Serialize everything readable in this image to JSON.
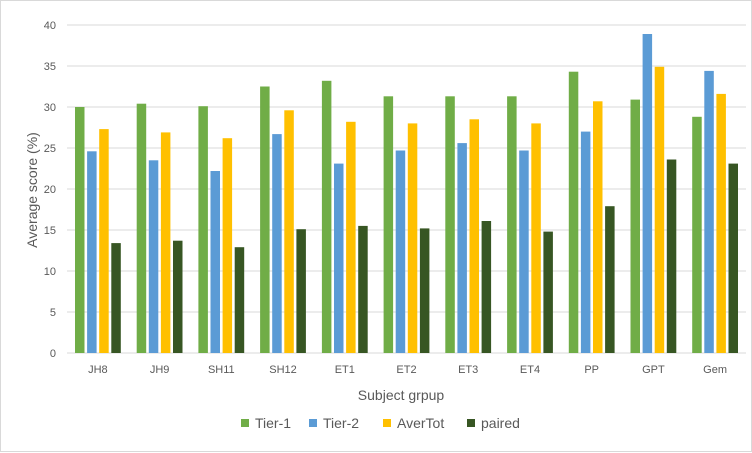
{
  "chart_data": {
    "type": "bar",
    "title": "",
    "xlabel": "Subject grpup",
    "ylabel": "Average score (%)",
    "ylim": [
      0,
      40
    ],
    "yticks": [
      0,
      5,
      10,
      15,
      20,
      25,
      30,
      35,
      40
    ],
    "grid": true,
    "legend_position": "bottom",
    "categories": [
      "JH8",
      "JH9",
      "SH11",
      "SH12",
      "ET1",
      "ET2",
      "ET3",
      "ET4",
      "PP",
      "GPT",
      "Gem"
    ],
    "series": [
      {
        "name": "Tier-1",
        "color": "#70ad47",
        "values": [
          30.0,
          30.4,
          30.1,
          32.5,
          33.2,
          31.3,
          31.3,
          31.3,
          34.3,
          30.9,
          28.8
        ]
      },
      {
        "name": "Tier-2",
        "color": "#5b9bd5",
        "values": [
          24.6,
          23.5,
          22.2,
          26.7,
          23.1,
          24.7,
          25.6,
          24.7,
          27.0,
          38.9,
          34.4
        ]
      },
      {
        "name": "AverTot",
        "color": "#ffc000",
        "values": [
          27.3,
          26.9,
          26.2,
          29.6,
          28.2,
          28.0,
          28.5,
          28.0,
          30.7,
          34.9,
          31.6
        ]
      },
      {
        "name": "paired",
        "color": "#375623",
        "values": [
          13.4,
          13.7,
          12.9,
          15.1,
          15.5,
          15.2,
          16.1,
          14.8,
          17.9,
          23.6,
          23.1
        ]
      }
    ]
  }
}
